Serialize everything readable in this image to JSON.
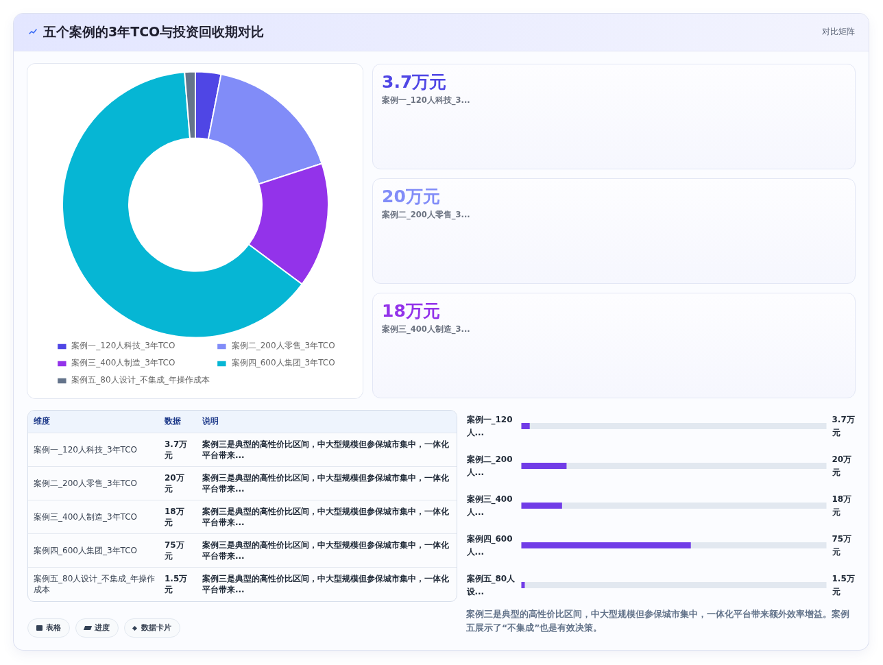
{
  "chart_data": [
    {
      "type": "donut",
      "title": "五个案例的3年TCO与投资回收期对比",
      "categories": [
        "案例一_120人科技_3年TCO",
        "案例二_200人零售_3年TCO",
        "案例三_400人制造_3年TCO",
        "案例四_600人集团_3年TCO",
        "案例五_80人设计_不集成_年操作成本"
      ],
      "values": [
        3.1,
        16.9,
        15.2,
        63.5,
        1.3
      ],
      "colors": [
        "#4f46e5",
        "#818cf8",
        "#9333ea",
        "#06b6d4",
        "#64748b"
      ],
      "legend": "bottom",
      "annotations": [
        "对比矩阵"
      ]
    },
    {
      "type": "other",
      "categories": [
        "案例一_120人科技_3...",
        "案例二_200人零售_3...",
        "案例三_400人制造_3..."
      ],
      "value_labels": [
        "3.7万元",
        "20万元",
        "18万元"
      ]
    },
    {
      "type": "other",
      "categories": [
        "案例一_120人科技_3年TCO",
        "案例二_200人零售_3年TCO",
        "案例三_400人制造_3年TCO",
        "案例四_600人集团_3年TCO",
        "案例五_80人设计_不集成_年操作成本"
      ],
      "value_labels": [
        "3.7万元",
        "20万元",
        "18万元",
        "75万元",
        "1.5万元"
      ],
      "annotations": [
        "维度",
        "数据",
        "说明",
        "案例三是典型的高性价比区间，中大型规模但参保城市集中，一体化平台带来...",
        "案例三是典型的高性价比区间，中大型规模但参保城市集中，一体化平台带来...",
        "案例三是典型的高性价比区间，中大型规模但参保城市集中，一体化平台带来...",
        "案例三是典型的高性价比区间，中大型规模但参保城市集中，一体化平台带来...",
        "案例三是典型的高性价比区间，中大型规模但参保城市集中，一体化平台带来...",
        "表格",
        "进度",
        "数据卡片"
      ]
    },
    {
      "type": "bar",
      "orientation": "horizontal",
      "categories": [
        "案例一_120人...",
        "案例二_200人...",
        "案例三_400人...",
        "案例四_600人...",
        "案例五_80人设..."
      ],
      "values": [
        3.7,
        20,
        18,
        75,
        1.5
      ],
      "value_labels": [
        "3.7万元",
        "20万元",
        "18万元",
        "75万元",
        "1.5万元"
      ],
      "color": "#713ce7",
      "annotations": [
        "案例三是典型的高性价比区间，中大型规模但参保城市集中，一体化平台带来额外效率增益。案例五展示了“不集成”也是有效决策。"
      ]
    }
  ]
}
